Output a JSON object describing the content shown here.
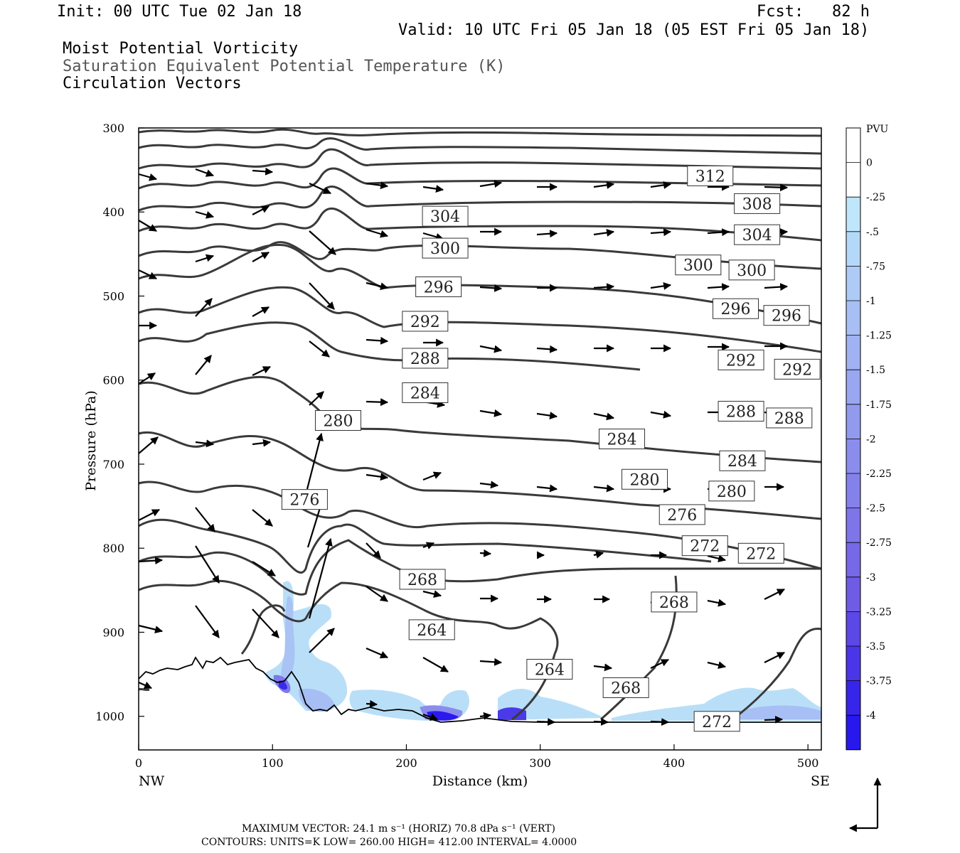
{
  "header": {
    "init": "Init: 00 UTC Tue 02 Jan 18",
    "fcst": "Fcst:   82 h",
    "valid": "Valid: 10 UTC Fri 05 Jan 18 (05 EST Fri 05 Jan 18)",
    "field1": "Moist Potential Vorticity",
    "field2": "Saturation Equivalent Potential Temperature (K)",
    "field3": "Circulation Vectors"
  },
  "axes": {
    "xlabel": "Distance (km)",
    "ylabel": "Pressure (hPa)",
    "x_left_end": "NW",
    "x_right_end": "SE",
    "xticks": [
      0,
      100,
      200,
      300,
      400,
      500
    ],
    "yticks": [
      300,
      400,
      500,
      600,
      700,
      800,
      900,
      1000
    ],
    "xlim": [
      0,
      510
    ],
    "ylim": [
      300,
      1040
    ]
  },
  "colorbar": {
    "title": "PVU",
    "labels": [
      "0",
      "-.25",
      "-.5",
      "-.75",
      "-1",
      "-1.25",
      "-1.5",
      "-1.75",
      "-2",
      "-2.25",
      "-2.5",
      "-2.75",
      "-3",
      "-3.25",
      "-3.5",
      "-3.75",
      "-4"
    ],
    "colors": [
      "#ffffff",
      "#ffffff",
      "#bfe6fa",
      "#b4d8f8",
      "#aecbf6",
      "#a7bff4",
      "#a0b2f2",
      "#99a6f0",
      "#929aee",
      "#8b8dec",
      "#8481ea",
      "#7d75e8",
      "#7668e6",
      "#6f5ce4",
      "#5b48e6",
      "#4a36e8",
      "#3825ea",
      "#2718ee"
    ]
  },
  "footer": {
    "max_vector": "MAXIMUM VECTOR:  24.1 m s⁻¹ (HORIZ)        70.8 dPa s⁻¹ (VERT)",
    "contours": "CONTOURS:  UNITS=K  LOW=   260.00        HIGH=  412.00        INTERVAL=    4.0000"
  },
  "chart_data": {
    "type": "cross-section",
    "title": "Moist Potential Vorticity / Saturation Equivalent Potential Temperature (K) / Circulation Vectors",
    "contour_units": "K",
    "contour_low": 260.0,
    "contour_high": 412.0,
    "contour_interval": 4.0,
    "max_vector_horiz": "24.1 m s-1",
    "max_vector_vert": "70.8 dPa s-1",
    "contour_labels": [
      {
        "value": 312,
        "x": 427,
        "p": 357
      },
      {
        "value": 308,
        "x": 462,
        "p": 390
      },
      {
        "value": 304,
        "x": 229,
        "p": 405
      },
      {
        "value": 304,
        "x": 462,
        "p": 427
      },
      {
        "value": 300,
        "x": 229,
        "p": 443
      },
      {
        "value": 300,
        "x": 418,
        "p": 463
      },
      {
        "value": 300,
        "x": 458,
        "p": 469
      },
      {
        "value": 296,
        "x": 224,
        "p": 489
      },
      {
        "value": 296,
        "x": 446,
        "p": 515
      },
      {
        "value": 296,
        "x": 484,
        "p": 523
      },
      {
        "value": 292,
        "x": 214,
        "p": 530
      },
      {
        "value": 292,
        "x": 450,
        "p": 576
      },
      {
        "value": 292,
        "x": 492,
        "p": 587
      },
      {
        "value": 288,
        "x": 214,
        "p": 574
      },
      {
        "value": 288,
        "x": 450,
        "p": 637
      },
      {
        "value": 288,
        "x": 486,
        "p": 645
      },
      {
        "value": 284,
        "x": 214,
        "p": 615
      },
      {
        "value": 284,
        "x": 361,
        "p": 670
      },
      {
        "value": 284,
        "x": 451,
        "p": 696
      },
      {
        "value": 280,
        "x": 149,
        "p": 648
      },
      {
        "value": 280,
        "x": 378,
        "p": 718
      },
      {
        "value": 280,
        "x": 443,
        "p": 732
      },
      {
        "value": 276,
        "x": 124,
        "p": 742
      },
      {
        "value": 276,
        "x": 406,
        "p": 760
      },
      {
        "value": 272,
        "x": 423,
        "p": 797
      },
      {
        "value": 272,
        "x": 465,
        "p": 806
      },
      {
        "value": 268,
        "x": 212,
        "p": 837
      },
      {
        "value": 268,
        "x": 400,
        "p": 864
      },
      {
        "value": 264,
        "x": 219,
        "p": 897
      },
      {
        "value": 264,
        "x": 307,
        "p": 944
      },
      {
        "value": 268,
        "x": 364,
        "p": 966
      },
      {
        "value": 272,
        "x": 432,
        "p": 1006
      }
    ]
  }
}
